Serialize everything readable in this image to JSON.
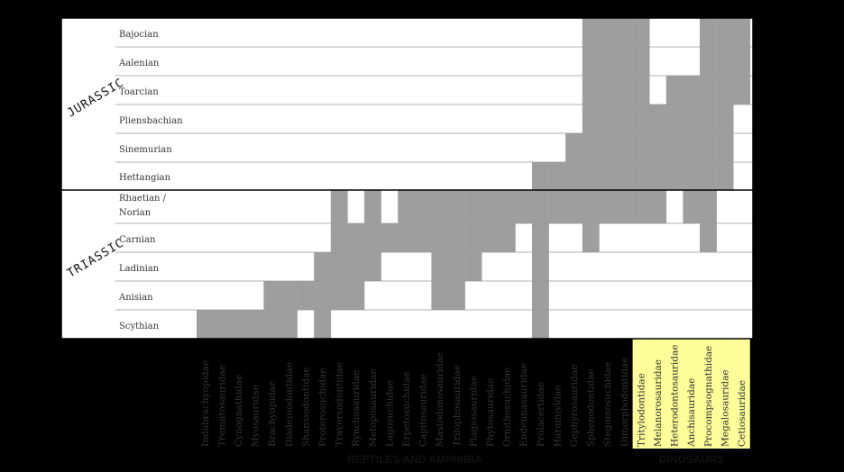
{
  "chart_data": {
    "type": "range",
    "colors": {
      "bar": "#9e9e9e",
      "highlight": "#fdfd9a",
      "background": "#ffffff",
      "frame": "#000000"
    },
    "periods": [
      {
        "label": "JURASSIC",
        "stages": [
          0,
          5
        ]
      },
      {
        "label": "TRIASSIC",
        "stages": [
          6,
          10
        ]
      }
    ],
    "stages": [
      "Bajocian",
      "Aalenian",
      "Toarcian",
      "Pliensbachian",
      "Sinemurian",
      "Hettangian",
      "Rhaetian /\nNorian",
      "Carnian",
      "Ladinian",
      "Anisian",
      "Scythian"
    ],
    "families": [
      "Indobrachyopidae",
      "Trematosauridae",
      "Cynognathidae",
      "Myosauridae",
      "Brachyopidae",
      "Diademodontidae",
      "Shansiodontidae",
      "Proterosuchidae",
      "Traversodontidae",
      "Rynchosauridae",
      "Metoposauridae",
      "Lagosuchidae",
      "Erpetosuchidae",
      "Capitosauridae",
      "Mastodonosauridae",
      "Trilophosauridae",
      "Plagiosauridae",
      "Phytosauridae",
      "Ornithosuchidae",
      "Endennasauridae",
      "Prolacertidae",
      "Haramiyidae",
      "Gephyrosauridae",
      "Sphenodontidae",
      "Stegomosuchidae",
      "Dimorphodontidae",
      "Tritylodontidae",
      "Melanorosauridae",
      "Heterodontosauridae",
      "Anchisauridae",
      "Procompsognathidae",
      "Megalosauridae",
      "Cetiosauridae"
    ],
    "groups": [
      {
        "label": "REPTILES AND AMPHIBIA",
        "families": [
          0,
          25
        ]
      },
      {
        "label": "DINOSAURS",
        "families": [
          26,
          32
        ],
        "highlight": true
      }
    ],
    "ranges": [
      {
        "family": 0,
        "stages": [
          10,
          10
        ]
      },
      {
        "family": 1,
        "stages": [
          10,
          10
        ]
      },
      {
        "family": 2,
        "stages": [
          10,
          10
        ]
      },
      {
        "family": 3,
        "stages": [
          10,
          10
        ]
      },
      {
        "family": 4,
        "stages": [
          9,
          10
        ]
      },
      {
        "family": 5,
        "stages": [
          9,
          10
        ]
      },
      {
        "family": 6,
        "stages": [
          9,
          9
        ]
      },
      {
        "family": 7,
        "stages": [
          8,
          10
        ]
      },
      {
        "family": 8,
        "stages": [
          6,
          9
        ]
      },
      {
        "family": 9,
        "stages": [
          7,
          9
        ]
      },
      {
        "family": 10,
        "stages": [
          6,
          8
        ]
      },
      {
        "family": 11,
        "stages": [
          7,
          7
        ]
      },
      {
        "family": 12,
        "stages": [
          6,
          7
        ]
      },
      {
        "family": 13,
        "stages": [
          6,
          7
        ]
      },
      {
        "family": 14,
        "stages": [
          6,
          9
        ]
      },
      {
        "family": 15,
        "stages": [
          6,
          9
        ]
      },
      {
        "family": 16,
        "stages": [
          6,
          8
        ]
      },
      {
        "family": 17,
        "stages": [
          6,
          7
        ]
      },
      {
        "family": 18,
        "stages": [
          6,
          7
        ]
      },
      {
        "family": 19,
        "stages": [
          6,
          6
        ]
      },
      {
        "family": 20,
        "stages": [
          5,
          10
        ]
      },
      {
        "family": 21,
        "stages": [
          5,
          6
        ]
      },
      {
        "family": 22,
        "stages": [
          4,
          6
        ]
      },
      {
        "family": 23,
        "stages": [
          0,
          7
        ]
      },
      {
        "family": 24,
        "stages": [
          0,
          6
        ]
      },
      {
        "family": 25,
        "stages": [
          0,
          6
        ]
      },
      {
        "family": 26,
        "stages": [
          0,
          6
        ]
      },
      {
        "family": 27,
        "stages": [
          3,
          6
        ]
      },
      {
        "family": 28,
        "stages": [
          2,
          5
        ]
      },
      {
        "family": 29,
        "stages": [
          2,
          6
        ]
      },
      {
        "family": 30,
        "stages": [
          0,
          7
        ]
      },
      {
        "family": 31,
        "stages": [
          0,
          5
        ]
      },
      {
        "family": 32,
        "stages": [
          0,
          2
        ]
      }
    ]
  }
}
